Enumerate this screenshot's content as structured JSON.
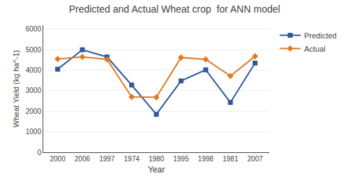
{
  "chart_data": {
    "type": "line",
    "title": "Predicted and Actual Wheat crop  for ANN model",
    "x_label": "Year",
    "y_label": "Wheat Yield (kg ha^-1)",
    "categories": [
      "2000",
      "2006",
      "1997",
      "1974",
      "1980",
      "1995",
      "1998",
      "1981",
      "2007"
    ],
    "series": [
      {
        "name": "Predicted",
        "color": "#2E5A9C",
        "marker": "square",
        "values": [
          4050,
          5000,
          4650,
          3280,
          1850,
          3480,
          4020,
          2430,
          4350
        ]
      },
      {
        "name": "Actual",
        "color": "#E07B20",
        "marker": "diamond",
        "values": [
          4550,
          4650,
          4530,
          2700,
          2680,
          4620,
          4530,
          3720,
          4680
        ]
      }
    ],
    "ylim": [
      0,
      6200
    ],
    "yticks": [
      0,
      1000,
      2000,
      3000,
      4000,
      5000,
      6000
    ],
    "grid": true,
    "legend": "right"
  }
}
